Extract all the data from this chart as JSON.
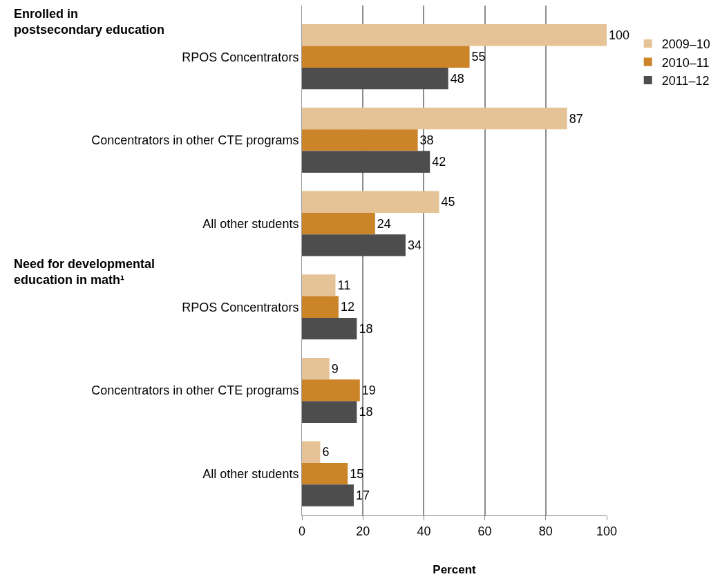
{
  "chart_data": {
    "type": "bar",
    "orientation": "horizontal",
    "xlabel": "Percent",
    "annotations": [
      "Enrolled in postsecondary education",
      "Need for developmental education in math¹"
    ],
    "categories": [
      "RPOS Concentrators",
      "Concentrators in other CTE programs",
      "All other students",
      "RPOS Concentrators",
      "Concentrators in other CTE programs",
      "All other students"
    ],
    "series": [
      {
        "name": "2009–10",
        "color": "#e5c396",
        "values": [
          100,
          87,
          45,
          11,
          9,
          6
        ]
      },
      {
        "name": "2010–11",
        "color": "#cc8429",
        "values": [
          55,
          38,
          24,
          12,
          19,
          15
        ]
      },
      {
        "name": "2011–12",
        "color": "#4d4d4d",
        "values": [
          48,
          42,
          34,
          18,
          18,
          17
        ]
      }
    ],
    "xlim": [
      0,
      100
    ],
    "xticks": [
      0,
      20,
      40,
      60,
      80,
      100
    ],
    "grid": "x",
    "legend": "top right",
    "data_labels": true
  }
}
